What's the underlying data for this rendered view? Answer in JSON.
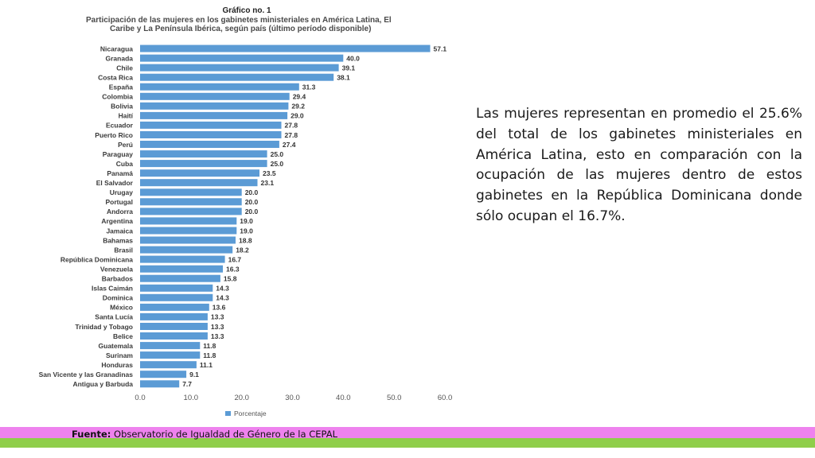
{
  "chart_data": {
    "type": "bar",
    "orientation": "horizontal",
    "figure_label": "Gráfico no. 1",
    "title": "Participación de las mujeres en los gabinetes ministeriales en América Latina, El Caribe y La Península Ibérica, según país (último período disponible)",
    "title_lines": [
      "Participación de las mujeres en los gabinetes ministeriales en América Latina, El",
      "Caribe y La Península Ibérica, según país (último período disponible)"
    ],
    "categories": [
      "Nicaragua",
      "Granada",
      "Chile",
      "Costa Rica",
      "España",
      "Colombia",
      "Bolivia",
      "Haití",
      "Ecuador",
      "Puerto Rico",
      "Perú",
      "Paraguay",
      "Cuba",
      "Panamá",
      "El Salvador",
      "Urugay",
      "Portugal",
      "Andorra",
      "Argentina",
      "Jamaica",
      "Bahamas",
      "Brasil",
      "República Dominicana",
      "Venezuela",
      "Barbados",
      "Islas Caimán",
      "Dominica",
      "México",
      "Santa Lucía",
      "Trinidad y Tobago",
      "Belice",
      "Guatemala",
      "Surinam",
      "Honduras",
      "San Vicente y las Granadinas",
      "Antigua y Barbuda"
    ],
    "values": [
      57.1,
      40.0,
      39.1,
      38.1,
      31.3,
      29.4,
      29.2,
      29.0,
      27.8,
      27.8,
      27.4,
      25.0,
      25.0,
      23.5,
      23.1,
      20.0,
      20.0,
      20.0,
      19.0,
      19.0,
      18.8,
      18.2,
      16.7,
      16.3,
      15.8,
      14.3,
      14.3,
      13.6,
      13.3,
      13.3,
      13.3,
      11.8,
      11.8,
      11.1,
      9.1,
      7.7
    ],
    "series": [
      {
        "name": "Porcentaje"
      }
    ],
    "xlim": [
      0,
      60
    ],
    "xticks": [
      "0.0",
      "10.0",
      "20.0",
      "30.0",
      "40.0",
      "50.0",
      "60.0"
    ],
    "legend": "bottom",
    "bar_color": "#5b9bd5",
    "grid": false
  },
  "summary_text": "Las mujeres representan en promedio el 25.6% del total de los gabinetes ministeriales en América Latina, esto en comparación con la ocupación de las mujeres dentro de estos gabinetes en la República Dominicana donde sólo ocupan el 16.7%.",
  "source": {
    "label": "Fuente:",
    "text": " Observatorio de Igualdad de Género de la CEPAL"
  },
  "colors": {
    "band_pink": "#ee82ee",
    "band_green": "#8fce4a"
  }
}
